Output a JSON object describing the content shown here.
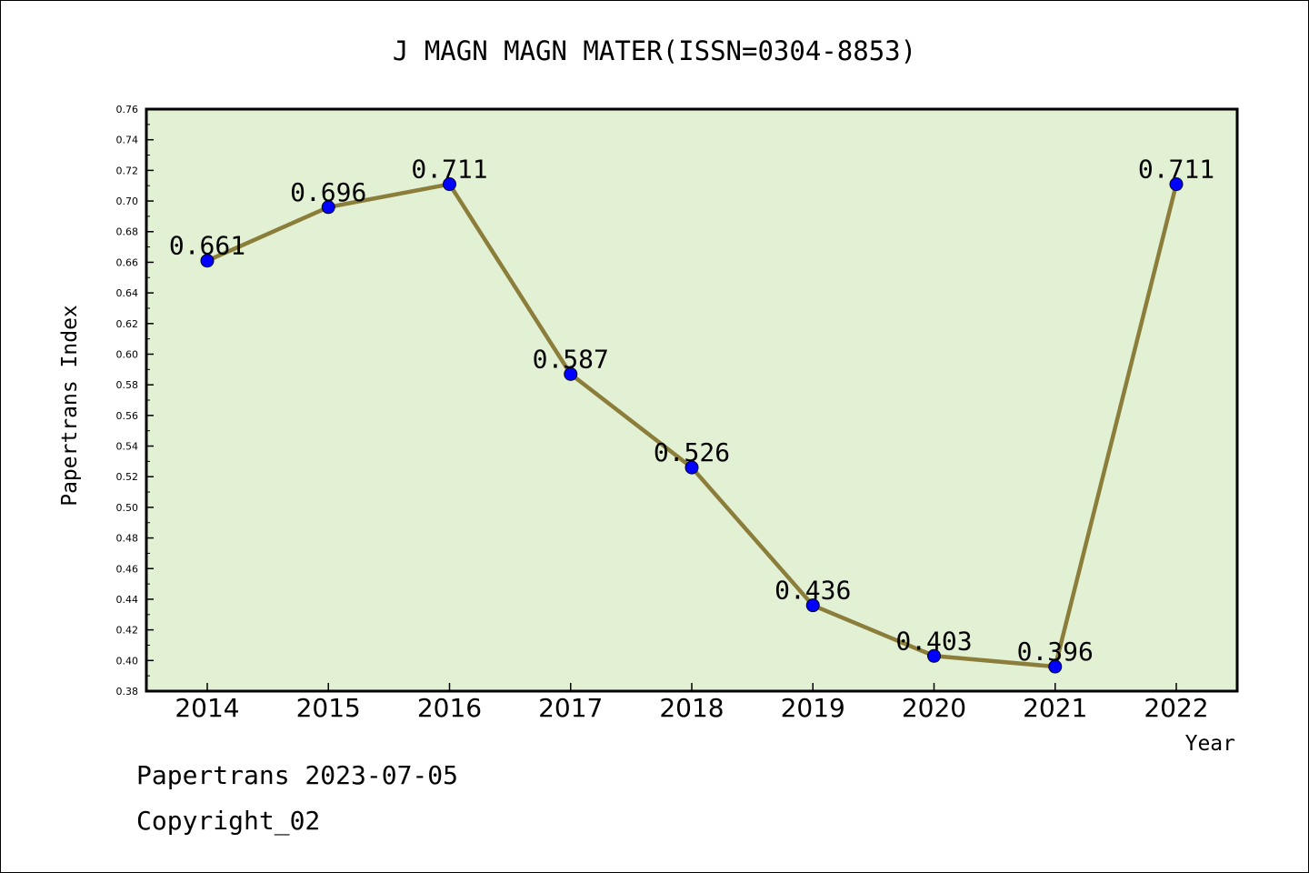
{
  "chart_data": {
    "type": "line",
    "title": "J MAGN MAGN MATER(ISSN=0304-8853)",
    "xlabel": "Year",
    "ylabel": "Papertrans Index",
    "categories": [
      "2014",
      "2015",
      "2016",
      "2017",
      "2018",
      "2019",
      "2020",
      "2021",
      "2022"
    ],
    "series": [
      {
        "values": [
          0.661,
          0.696,
          0.711,
          0.587,
          0.526,
          0.436,
          0.403,
          0.396,
          0.711
        ],
        "labels": [
          "0.661",
          "0.696",
          "0.711",
          "0.587",
          "0.526",
          "0.436",
          "0.403",
          "0.396",
          "0.711"
        ]
      }
    ],
    "ylim": [
      0.38,
      0.76
    ],
    "yticks": [
      "0.38",
      "0.40",
      "0.42",
      "0.44",
      "0.46",
      "0.48",
      "0.50",
      "0.52",
      "0.54",
      "0.56",
      "0.58",
      "0.60",
      "0.62",
      "0.64",
      "0.66",
      "0.68",
      "0.70",
      "0.72",
      "0.74",
      "0.76"
    ],
    "grid": false,
    "legend": "none",
    "colors": {
      "plot_background": "#e2f0d4",
      "line": "#8b7d3a",
      "marker": "#0000ff"
    }
  },
  "footer": {
    "line1": "Papertrans 2023-07-05",
    "line2": "Copyright_02"
  }
}
